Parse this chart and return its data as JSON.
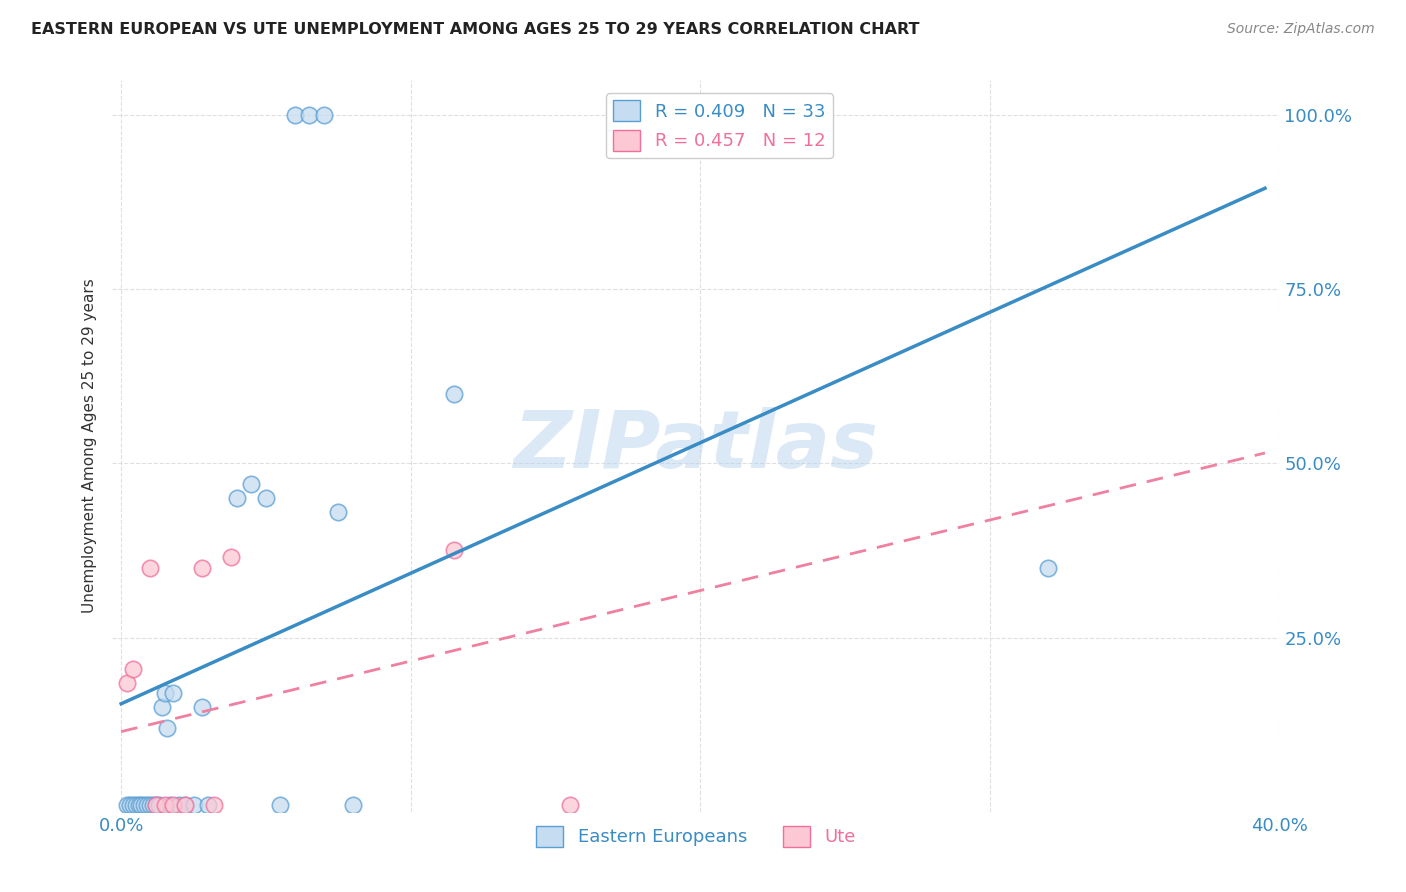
{
  "title": "EASTERN EUROPEAN VS UTE UNEMPLOYMENT AMONG AGES 25 TO 29 YEARS CORRELATION CHART",
  "source": "Source: ZipAtlas.com",
  "ylabel": "Unemployment Among Ages 25 to 29 years",
  "xlim": [
    0.0,
    0.4
  ],
  "ylim": [
    0.0,
    1.05
  ],
  "blue_R": 0.409,
  "blue_N": 33,
  "pink_R": 0.457,
  "pink_N": 12,
  "blue_fill_color": "#c6dcf0",
  "blue_edge_color": "#5a9fd4",
  "pink_fill_color": "#fcc8d4",
  "pink_edge_color": "#f0709a",
  "blue_line_color": "#3a8cc4",
  "pink_line_color": "#f080a0",
  "watermark": "ZIPatlas",
  "blue_points_x": [
    0.002,
    0.003,
    0.004,
    0.005,
    0.006,
    0.007,
    0.008,
    0.009,
    0.01,
    0.011,
    0.012,
    0.013,
    0.014,
    0.015,
    0.016,
    0.017,
    0.018,
    0.02,
    0.022,
    0.025,
    0.028,
    0.03,
    0.04,
    0.045,
    0.05,
    0.055,
    0.06,
    0.065,
    0.07,
    0.075,
    0.08,
    0.115,
    0.32
  ],
  "blue_points_y": [
    0.01,
    0.01,
    0.01,
    0.01,
    0.01,
    0.01,
    0.01,
    0.01,
    0.01,
    0.01,
    0.01,
    0.01,
    0.15,
    0.17,
    0.12,
    0.01,
    0.17,
    0.01,
    0.01,
    0.01,
    0.15,
    0.01,
    0.45,
    0.47,
    0.45,
    0.01,
    1.0,
    1.0,
    1.0,
    0.43,
    0.01,
    0.6,
    0.35
  ],
  "pink_points_x": [
    0.002,
    0.004,
    0.01,
    0.012,
    0.015,
    0.018,
    0.022,
    0.028,
    0.032,
    0.038,
    0.115,
    0.155
  ],
  "pink_points_y": [
    0.185,
    0.205,
    0.35,
    0.01,
    0.01,
    0.01,
    0.01,
    0.35,
    0.01,
    0.365,
    0.375,
    0.01
  ],
  "blue_trend_x": [
    0.0,
    0.395
  ],
  "blue_trend_y": [
    0.155,
    0.895
  ],
  "pink_trend_x": [
    0.0,
    0.395
  ],
  "pink_trend_y": [
    0.115,
    0.515
  ],
  "background_color": "#ffffff",
  "grid_color": "#d8d8d8"
}
